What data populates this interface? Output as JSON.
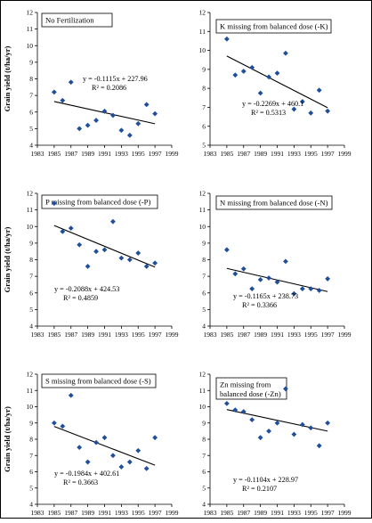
{
  "page": {
    "background": "#ffffff",
    "outer_border": "#000000"
  },
  "style": {
    "marker_color": "#1f4e9a",
    "line_color": "#000000"
  },
  "chart_data": [
    {
      "type": "scatter",
      "title": "No Fertilization",
      "ylabel": "Grain yield (t/ha/yr)",
      "xlabel": "",
      "xlim": [
        1983,
        1999
      ],
      "ylim": [
        4,
        12
      ],
      "xticks": [
        1983,
        1985,
        1987,
        1989,
        1991,
        1993,
        1995,
        1997,
        1999
      ],
      "yticks": [
        4,
        5,
        6,
        7,
        8,
        9,
        10,
        11,
        12
      ],
      "grid": false,
      "series": [
        {
          "x": [
            1985,
            1986,
            1987,
            1988,
            1989,
            1990,
            1991,
            1992,
            1993,
            1994,
            1995,
            1996,
            1997
          ],
          "y": [
            7.2,
            6.7,
            7.8,
            5.0,
            5.2,
            5.5,
            6.05,
            5.8,
            4.9,
            4.6,
            5.3,
            6.45,
            5.9
          ]
        }
      ],
      "trendline": {
        "slope": -0.1115,
        "intercept": 227.96,
        "equation": "y = -0.1115x + 227.96",
        "r2": "R² = 0.2086"
      }
    },
    {
      "type": "scatter",
      "title": "K missing from balanced dose (-K)",
      "ylabel": "",
      "xlabel": "",
      "xlim": [
        1983,
        1999
      ],
      "ylim": [
        5,
        12
      ],
      "xticks": [
        1983,
        1985,
        1987,
        1989,
        1991,
        1993,
        1995,
        1997,
        1999
      ],
      "yticks": [
        5,
        6,
        7,
        8,
        9,
        10,
        11,
        12
      ],
      "grid": false,
      "series": [
        {
          "x": [
            1985,
            1986,
            1987,
            1988,
            1989,
            1990,
            1991,
            1992,
            1993,
            1994,
            1995,
            1996,
            1997
          ],
          "y": [
            10.6,
            8.7,
            8.9,
            9.1,
            7.75,
            8.6,
            8.8,
            9.85,
            6.9,
            7.3,
            6.7,
            7.9,
            6.8
          ]
        }
      ],
      "trendline": {
        "slope": -0.2269,
        "intercept": 460.1,
        "equation": "y = -0.2269x + 460.1",
        "r2": "R² = 0.5313"
      }
    },
    {
      "type": "scatter",
      "title": "P missing from balanced dose (-P)",
      "ylabel": "Grain yield (t/ha/yr)",
      "xlabel": "",
      "xlim": [
        1983,
        1999
      ],
      "ylim": [
        4,
        12
      ],
      "xticks": [
        1983,
        1985,
        1987,
        1989,
        1991,
        1993,
        1995,
        1997,
        1999
      ],
      "yticks": [
        4,
        5,
        6,
        7,
        8,
        9,
        10,
        11,
        12
      ],
      "grid": false,
      "series": [
        {
          "x": [
            1985,
            1986,
            1987,
            1988,
            1989,
            1990,
            1991,
            1992,
            1993,
            1994,
            1995,
            1996,
            1997
          ],
          "y": [
            11.4,
            9.7,
            9.9,
            8.9,
            7.6,
            8.5,
            8.6,
            10.3,
            8.1,
            8.0,
            8.4,
            7.6,
            7.8
          ]
        }
      ],
      "trendline": {
        "slope": -0.2088,
        "intercept": 424.53,
        "equation": "y = -0.2088x + 424.53",
        "r2": "R² = 0.4859"
      }
    },
    {
      "type": "scatter",
      "title": "N missing from balanced dose (-N)",
      "ylabel": "",
      "xlabel": "",
      "xlim": [
        1983,
        1999
      ],
      "ylim": [
        4,
        12
      ],
      "xticks": [
        1983,
        1985,
        1987,
        1989,
        1991,
        1993,
        1995,
        1997,
        1999
      ],
      "yticks": [
        4,
        5,
        6,
        7,
        8,
        9,
        10,
        11,
        12
      ],
      "grid": false,
      "series": [
        {
          "x": [
            1985,
            1986,
            1987,
            1988,
            1989,
            1990,
            1991,
            1992,
            1993,
            1994,
            1995,
            1996,
            1997
          ],
          "y": [
            8.6,
            7.15,
            7.45,
            6.25,
            6.8,
            6.9,
            6.65,
            7.9,
            5.95,
            6.25,
            6.25,
            6.15,
            6.85
          ]
        }
      ],
      "trendline": {
        "slope": -0.1165,
        "intercept": 238.73,
        "equation": "y = -0.1165x + 238.73",
        "r2": "R² = 0.3366"
      }
    },
    {
      "type": "scatter",
      "title": "S missing from balanced dose (-S)",
      "ylabel": "Grain yield (t/ha/yr)",
      "xlabel": "",
      "xlim": [
        1983,
        1999
      ],
      "ylim": [
        4,
        12
      ],
      "xticks": [
        1983,
        1985,
        1987,
        1989,
        1991,
        1993,
        1995,
        1997,
        1999
      ],
      "yticks": [
        4,
        5,
        6,
        7,
        8,
        9,
        10,
        11,
        12
      ],
      "grid": false,
      "series": [
        {
          "x": [
            1985,
            1986,
            1987,
            1988,
            1989,
            1990,
            1991,
            1992,
            1993,
            1994,
            1995,
            1996,
            1997
          ],
          "y": [
            9.0,
            8.8,
            10.7,
            7.5,
            6.6,
            7.8,
            8.1,
            7.0,
            6.3,
            6.6,
            7.3,
            6.2,
            8.1
          ]
        }
      ],
      "trendline": {
        "slope": -0.1984,
        "intercept": 402.61,
        "equation": "y = -0.1984x + 402.61",
        "r2": "R² = 0.3663"
      }
    },
    {
      "type": "scatter",
      "title": "Zn missing from balanced dose (-Zn)",
      "ylabel": "",
      "xlabel": "",
      "xlim": [
        1983,
        1999
      ],
      "ylim": [
        4,
        12
      ],
      "xticks": [
        1983,
        1985,
        1987,
        1989,
        1991,
        1993,
        1995,
        1997,
        1999
      ],
      "yticks": [
        4,
        5,
        6,
        7,
        8,
        9,
        10,
        11,
        12
      ],
      "grid": false,
      "series": [
        {
          "x": [
            1985,
            1986,
            1987,
            1988,
            1989,
            1990,
            1991,
            1992,
            1993,
            1994,
            1995,
            1996,
            1997
          ],
          "y": [
            10.2,
            9.8,
            9.7,
            9.2,
            8.1,
            8.5,
            9.0,
            11.1,
            8.3,
            8.9,
            8.7,
            7.6,
            9.0
          ]
        }
      ],
      "trendline": {
        "slope": -0.1104,
        "intercept": 228.97,
        "equation": "y = -0.1104x + 228.97",
        "r2": "R² = 0.2107"
      }
    }
  ]
}
